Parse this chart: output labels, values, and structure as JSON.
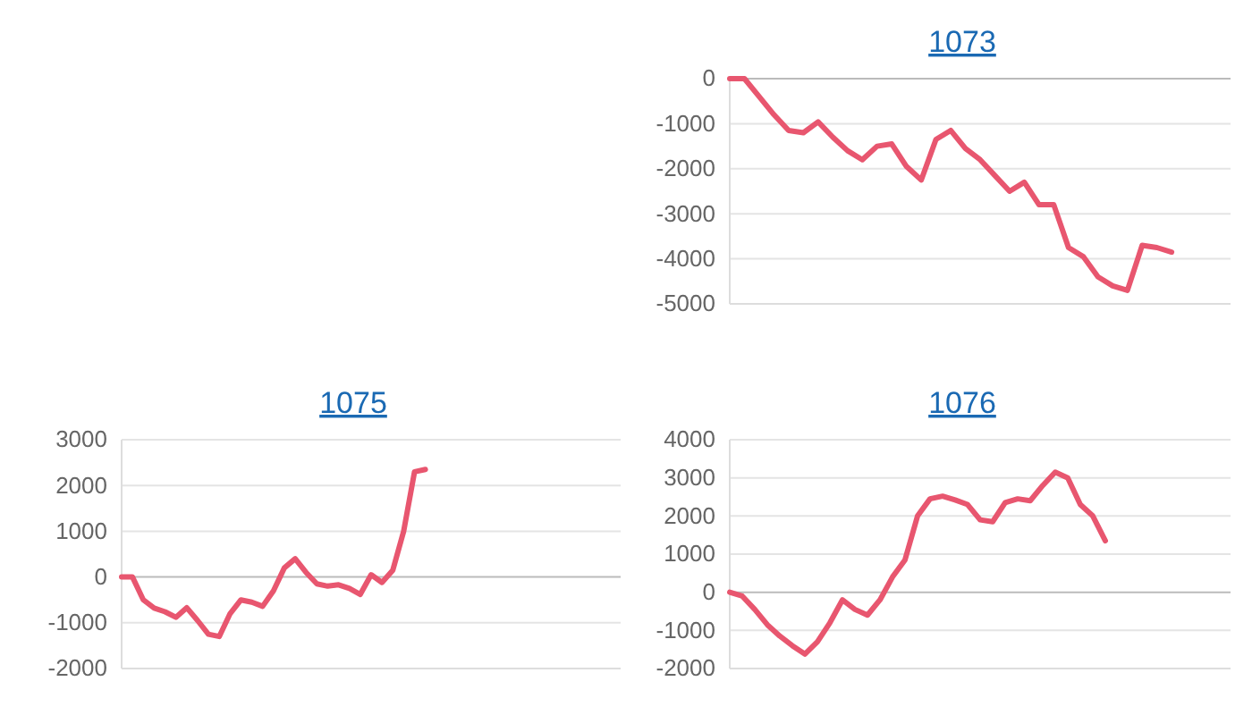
{
  "chart_data": [
    {
      "type": "line",
      "title": "1073",
      "categories": [
        null,
        null,
        null,
        null,
        null,
        null,
        null,
        null,
        null,
        null,
        null,
        null,
        null,
        null,
        null,
        null,
        null,
        null,
        null,
        null,
        null,
        null,
        null,
        null,
        null,
        null,
        null,
        null,
        null,
        null,
        null,
        null,
        null,
        null,
        null
      ],
      "series": [
        {
          "color": "#e8566f",
          "values": [
            0,
            0,
            -400,
            -800,
            -1150,
            -1200,
            -960,
            -1300,
            -1600,
            -1800,
            -1500,
            -1450,
            -1950,
            -2250,
            -1350,
            -1150,
            -1550,
            -1800,
            -2150,
            -2500,
            -2300,
            -2800,
            -2800,
            -3750,
            -3950,
            -4400,
            -4600,
            -4700,
            -3700,
            -3750,
            -3850,
            null,
            null,
            null,
            null
          ]
        }
      ],
      "ylim": [
        -5000,
        0
      ],
      "yticks": [
        -5000,
        -4000,
        -3000,
        -2000,
        -1000,
        0
      ],
      "grid": "y",
      "tick_labels": "y"
    },
    {
      "type": "line",
      "title": "1075",
      "categories": [
        null,
        null,
        null,
        null,
        null,
        null,
        null,
        null,
        null,
        null,
        null,
        null,
        null,
        null,
        null,
        null,
        null,
        null,
        null,
        null,
        null,
        null,
        null,
        null,
        null,
        null,
        null,
        null,
        null,
        null,
        null,
        null,
        null,
        null,
        null,
        null,
        null,
        null,
        null,
        null,
        null,
        null,
        null,
        null,
        null,
        null,
        null
      ],
      "series": [
        {
          "color": "#e8566f",
          "values": [
            0,
            0,
            -500,
            -680,
            -760,
            -880,
            -670,
            -950,
            -1250,
            -1300,
            -800,
            -500,
            -550,
            -640,
            -300,
            200,
            400,
            100,
            -150,
            -200,
            -170,
            -250,
            -380,
            50,
            -120,
            150,
            1000,
            2300,
            2350,
            null,
            null,
            null,
            null,
            null,
            null,
            null,
            null,
            null,
            null,
            null,
            null,
            null,
            null,
            null,
            null,
            null,
            null
          ]
        }
      ],
      "ylim": [
        -2000,
        3000
      ],
      "yticks": [
        -2000,
        -1000,
        0,
        1000,
        2000,
        3000
      ],
      "grid": "y",
      "tick_labels": "y"
    },
    {
      "type": "line",
      "title": "1076",
      "categories": [
        null,
        null,
        null,
        null,
        null,
        null,
        null,
        null,
        null,
        null,
        null,
        null,
        null,
        null,
        null,
        null,
        null,
        null,
        null,
        null,
        null,
        null,
        null,
        null,
        null,
        null,
        null,
        null,
        null,
        null,
        null,
        null,
        null,
        null,
        null,
        null,
        null,
        null,
        null,
        null,
        null
      ],
      "series": [
        {
          "color": "#e8566f",
          "values": [
            0,
            -100,
            -450,
            -850,
            -1150,
            -1400,
            -1620,
            -1300,
            -800,
            -200,
            -450,
            -600,
            -200,
            400,
            850,
            2000,
            2450,
            2520,
            2420,
            2300,
            1900,
            1850,
            2350,
            2450,
            2400,
            2800,
            3150,
            3000,
            2300,
            2000,
            1350,
            null,
            null,
            null,
            null,
            null,
            null,
            null,
            null,
            null,
            null
          ]
        }
      ],
      "ylim": [
        -2000,
        4000
      ],
      "yticks": [
        -2000,
        -1000,
        0,
        1000,
        2000,
        3000,
        4000
      ],
      "grid": "y",
      "tick_labels": "y"
    }
  ]
}
